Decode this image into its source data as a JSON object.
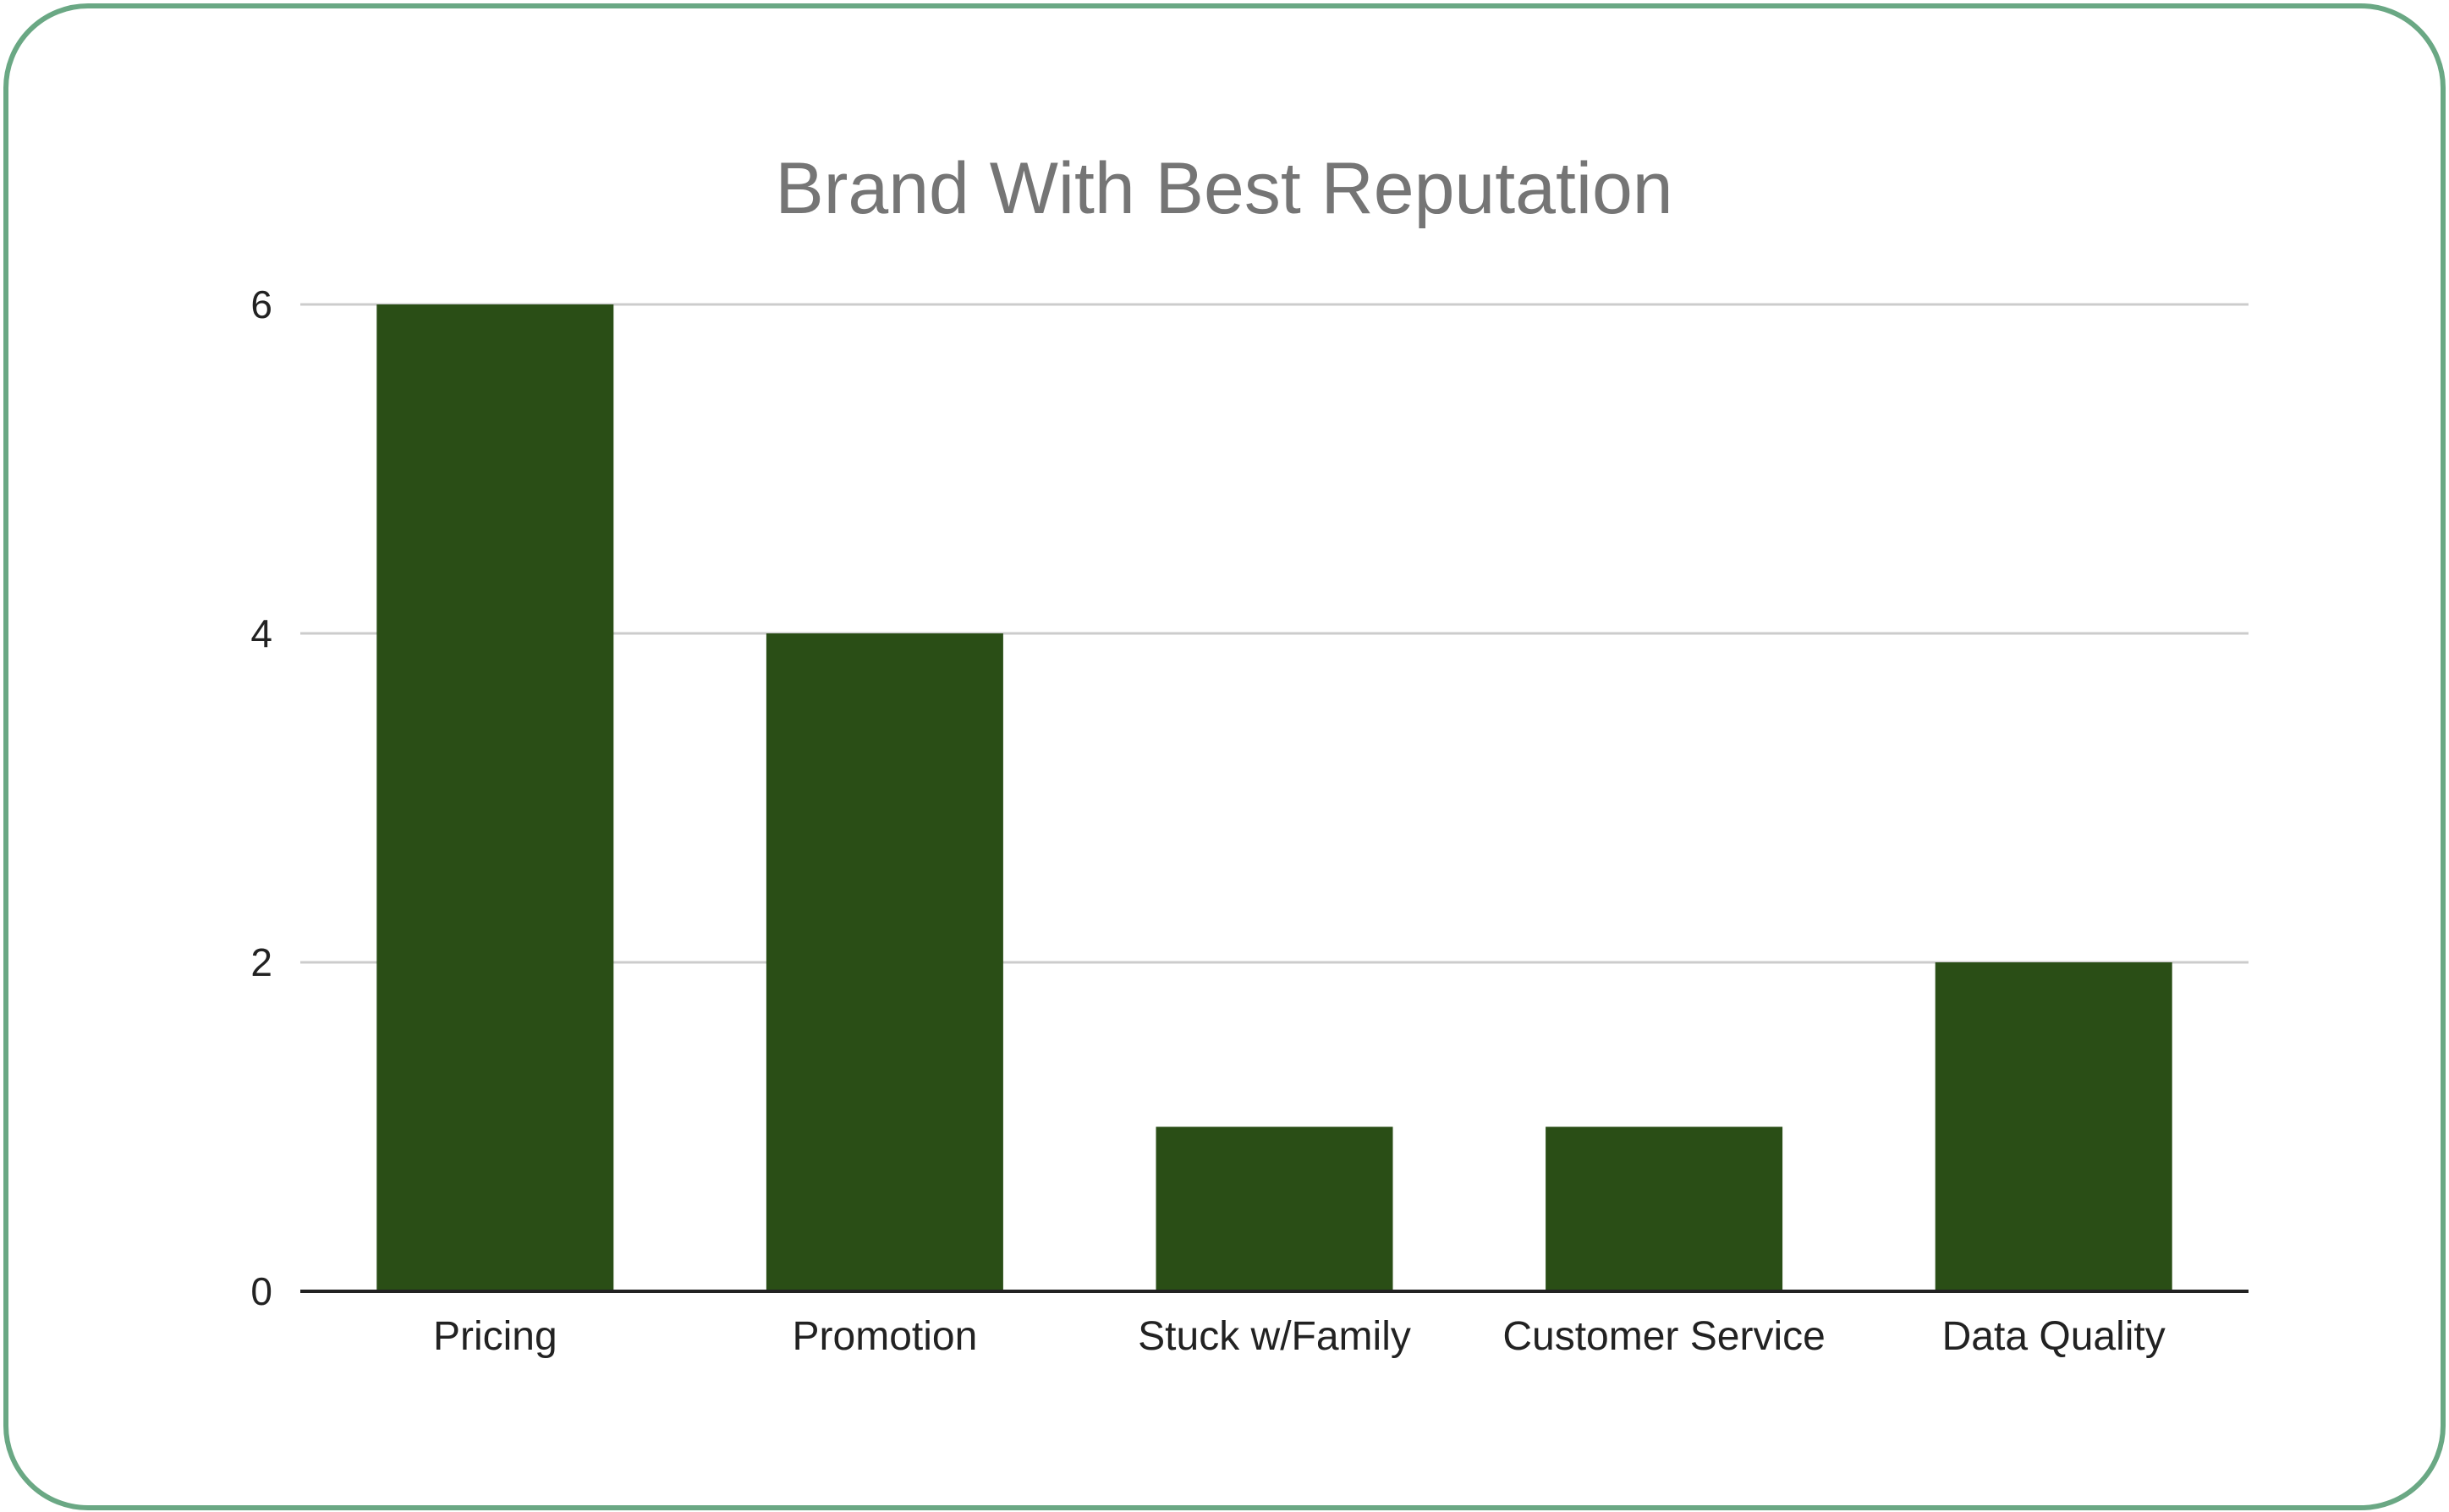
{
  "chart_data": {
    "type": "bar",
    "title": "Brand With Best Reputation",
    "xlabel": "",
    "ylabel": "",
    "categories": [
      "Pricing",
      "Promotion",
      "Stuck w/Family",
      "Customer Service",
      "Data Quality"
    ],
    "values": [
      6,
      4,
      1,
      1,
      2
    ],
    "ylim": [
      0,
      6
    ],
    "yticks": [
      "0",
      "2",
      "4",
      "6"
    ],
    "grid": true,
    "legend": "none",
    "bar_color": "#2a4e16",
    "grid_color": "#cccccc",
    "axis_color": "#222222",
    "border_color": "#6aa884"
  }
}
